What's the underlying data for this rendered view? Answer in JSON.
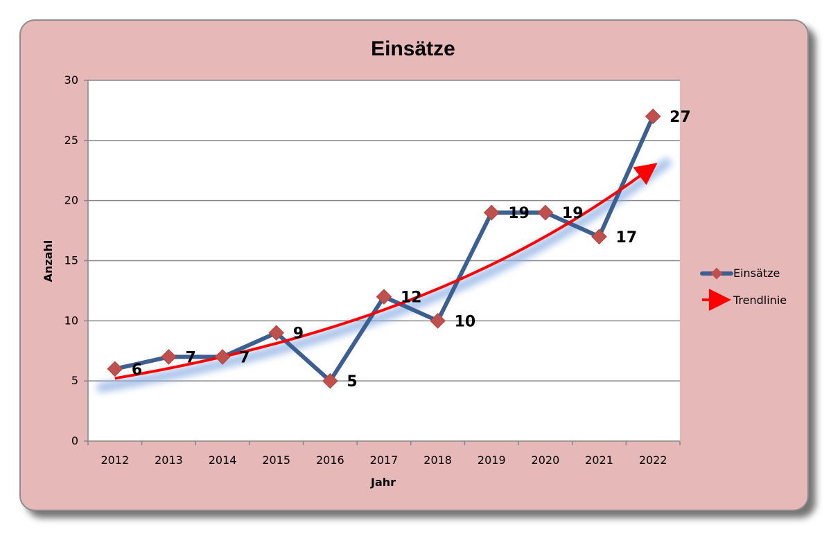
{
  "chart_data": {
    "type": "line",
    "title": "Einsätze",
    "xlabel": "Jahr",
    "ylabel": "Anzahl",
    "categories": [
      "2012",
      "2013",
      "2014",
      "2015",
      "2016",
      "2017",
      "2018",
      "2019",
      "2020",
      "2021",
      "2022"
    ],
    "series": [
      {
        "name": "Einsätze",
        "values": [
          6,
          7,
          7,
          9,
          5,
          12,
          10,
          19,
          19,
          17,
          27
        ],
        "color": "#3d5f8f",
        "marker_color": "#c0504d",
        "data_labels": true
      }
    ],
    "trendline": {
      "name": "Trendlinie",
      "type": "exponential",
      "color": "#ff0000"
    },
    "ylim": [
      0,
      30
    ],
    "yticks": [
      0,
      5,
      10,
      15,
      20,
      25,
      30
    ],
    "grid": true,
    "legend_position": "right",
    "plot_background": "#ffffff",
    "frame_color": "#e6b8b8"
  }
}
